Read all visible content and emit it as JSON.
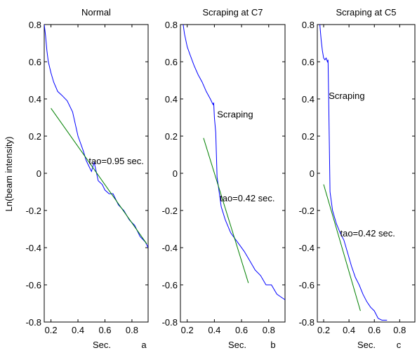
{
  "figure": {
    "ylabel": "Ln(beam intensity)"
  },
  "colors": {
    "measured": "#0000ff",
    "fit": "#008000",
    "axis": "#000000",
    "background": "#ffffff"
  },
  "chart_data": [
    {
      "type": "line",
      "title": "Normal",
      "xlabel": "Sec.",
      "panel_letter": "a",
      "xlim": [
        0.15,
        0.92
      ],
      "ylim": [
        -0.8,
        0.8
      ],
      "xticks": [
        0.2,
        0.4,
        0.6,
        0.8
      ],
      "xtick_labels": [
        "0.2",
        "0.4",
        "0.6",
        "0.8"
      ],
      "yticks": [
        -0.8,
        -0.6,
        -0.4,
        -0.2,
        0,
        0.2,
        0.4,
        0.6,
        0.8
      ],
      "ytick_labels": [
        "-0.8",
        "-0.6",
        "-0.4",
        "-0.2",
        "0",
        "0.2",
        "0.4",
        "0.6",
        "0.8"
      ],
      "annotations": [
        {
          "text": "tao=0.95 sec.",
          "x": 0.48,
          "y": 0.05
        }
      ],
      "series": [
        {
          "role": "measured",
          "x": [
            0.15,
            0.16,
            0.17,
            0.18,
            0.2,
            0.22,
            0.25,
            0.28,
            0.32,
            0.36,
            0.4,
            0.44,
            0.46,
            0.48,
            0.5,
            0.52,
            0.55,
            0.58,
            0.6,
            0.63,
            0.66,
            0.7,
            0.74,
            0.78,
            0.82,
            0.86,
            0.9,
            0.92
          ],
          "y": [
            0.8,
            0.74,
            0.66,
            0.6,
            0.54,
            0.49,
            0.44,
            0.42,
            0.39,
            0.33,
            0.2,
            0.12,
            0.07,
            0.04,
            0.01,
            0.06,
            -0.04,
            -0.06,
            -0.09,
            -0.11,
            -0.11,
            -0.17,
            -0.2,
            -0.25,
            -0.28,
            -0.34,
            -0.37,
            -0.4
          ]
        },
        {
          "role": "fit",
          "x": [
            0.2,
            0.91
          ],
          "y": [
            0.35,
            -0.38
          ]
        }
      ]
    },
    {
      "type": "line",
      "title": "Scraping at C7",
      "xlabel": "Sec.",
      "panel_letter": "b",
      "xlim": [
        0.15,
        0.92
      ],
      "ylim": [
        -0.8,
        0.8
      ],
      "xticks": [
        0.2,
        0.4,
        0.6,
        0.8
      ],
      "xtick_labels": [
        "0.2",
        "0.4",
        "0.6",
        "0.8"
      ],
      "yticks": [
        -0.8,
        -0.6,
        -0.4,
        -0.2,
        0,
        0.2,
        0.4,
        0.6,
        0.8
      ],
      "ytick_labels": [
        "-0.8",
        "-0.6",
        "-0.4",
        "-0.2",
        "0",
        "0.2",
        "0.4",
        "0.6",
        "0.8"
      ],
      "annotations": [
        {
          "text": "Scraping",
          "x": 0.42,
          "y": 0.3
        },
        {
          "text": "tao=0.42 sec.",
          "x": 0.44,
          "y": -0.15
        }
      ],
      "series": [
        {
          "role": "measured",
          "x": [
            0.17,
            0.18,
            0.2,
            0.22,
            0.25,
            0.28,
            0.31,
            0.34,
            0.37,
            0.39,
            0.395,
            0.4,
            0.41,
            0.42,
            0.45,
            0.48,
            0.52,
            0.55,
            0.58,
            0.62,
            0.66,
            0.7,
            0.74,
            0.78,
            0.82,
            0.86,
            0.9,
            0.92
          ],
          "y": [
            0.8,
            0.75,
            0.68,
            0.64,
            0.58,
            0.53,
            0.49,
            0.44,
            0.4,
            0.37,
            0.38,
            0.3,
            0.22,
            -0.02,
            -0.18,
            -0.25,
            -0.32,
            -0.35,
            -0.38,
            -0.42,
            -0.47,
            -0.52,
            -0.55,
            -0.6,
            -0.6,
            -0.65,
            -0.67,
            -0.68
          ]
        },
        {
          "role": "fit",
          "x": [
            0.32,
            0.65
          ],
          "y": [
            0.19,
            -0.59
          ]
        }
      ]
    },
    {
      "type": "line",
      "title": "Scraping at C5",
      "xlabel": "Sec.",
      "panel_letter": "c",
      "xlim": [
        0.15,
        0.92
      ],
      "ylim": [
        -0.8,
        0.8
      ],
      "xticks": [
        0.2,
        0.4,
        0.6,
        0.8
      ],
      "xtick_labels": [
        "0.2",
        "0.4",
        "0.6",
        "0.8"
      ],
      "yticks": [
        -0.8,
        -0.6,
        -0.4,
        -0.2,
        0,
        0.2,
        0.4,
        0.6,
        0.8
      ],
      "ytick_labels": [
        "-0.8",
        "-0.6",
        "-0.4",
        "-0.2",
        "0",
        "0.2",
        "0.4",
        "0.6",
        "0.8"
      ],
      "annotations": [
        {
          "text": "Scraping",
          "x": 0.24,
          "y": 0.4
        },
        {
          "text": "tao=0.42 sec.",
          "x": 0.33,
          "y": -0.34
        }
      ],
      "series": [
        {
          "role": "measured",
          "x": [
            0.17,
            0.18,
            0.19,
            0.2,
            0.21,
            0.22,
            0.23,
            0.235,
            0.24,
            0.25,
            0.27,
            0.3,
            0.33,
            0.36,
            0.39,
            0.42,
            0.45,
            0.48,
            0.51,
            0.54,
            0.57,
            0.6,
            0.63,
            0.66,
            0.7
          ],
          "y": [
            0.8,
            0.72,
            0.66,
            0.62,
            0.61,
            0.62,
            0.6,
            0.61,
            0.4,
            -0.1,
            -0.2,
            -0.27,
            -0.32,
            -0.36,
            -0.43,
            -0.5,
            -0.56,
            -0.6,
            -0.65,
            -0.69,
            -0.72,
            -0.74,
            -0.78,
            -0.79,
            -0.79
          ]
        },
        {
          "role": "fit",
          "x": [
            0.2,
            0.49
          ],
          "y": [
            -0.06,
            -0.74
          ]
        }
      ]
    }
  ]
}
